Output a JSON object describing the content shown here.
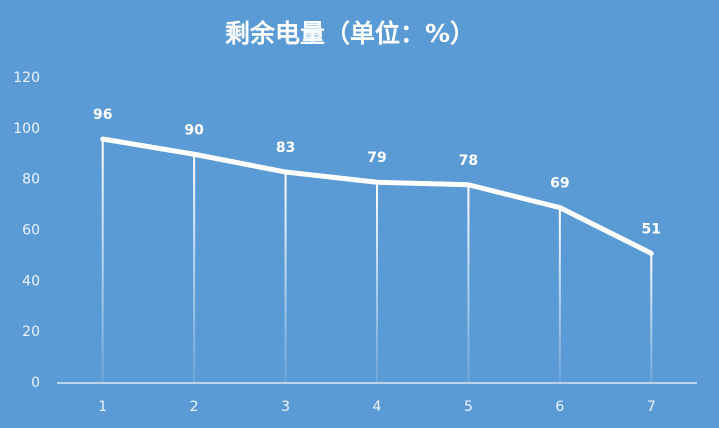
{
  "chart_data": {
    "type": "line",
    "title": "剩余电量（单位：%）",
    "categories": [
      "1",
      "2",
      "3",
      "4",
      "5",
      "6",
      "7"
    ],
    "values": [
      96,
      90,
      83,
      79,
      78,
      69,
      51
    ],
    "color": "#ffffff",
    "ylim": [
      0,
      120
    ],
    "yticks": [
      0,
      20,
      40,
      60,
      80,
      100,
      120
    ]
  }
}
